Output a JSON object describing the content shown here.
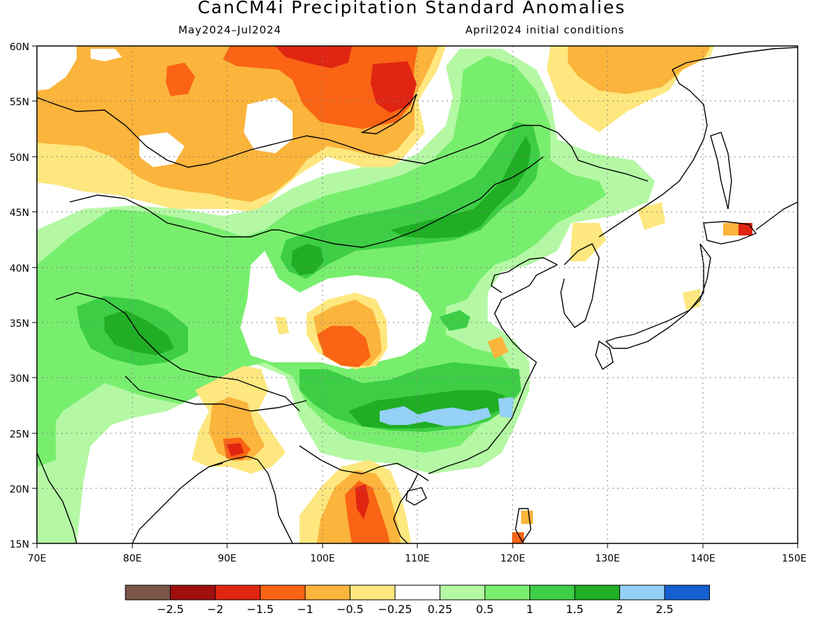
{
  "title": "CanCM4i Precipitation Standard Anomalies",
  "subtitle_left": "May2024–Jul2024",
  "subtitle_right": "April2024 initial conditions",
  "map": {
    "lon_range": [
      70,
      150
    ],
    "lat_range": [
      15,
      60
    ],
    "lat_ticks": [
      "15N",
      "20N",
      "25N",
      "30N",
      "35N",
      "40N",
      "45N",
      "50N",
      "55N",
      "60N"
    ],
    "lon_ticks": [
      "70E",
      "80E",
      "90E",
      "100E",
      "110E",
      "120E",
      "130E",
      "140E",
      "150E"
    ],
    "grid": true
  },
  "colorbar": {
    "colors": [
      "#7b5548",
      "#a00e0e",
      "#e02512",
      "#fa6414",
      "#fbb43c",
      "#fde77e",
      "#ffffff",
      "#b4f8a4",
      "#78ee6e",
      "#3dce46",
      "#1fae24",
      "#95d0f6",
      "#1560d0"
    ],
    "labels": [
      "−2.5",
      "−2",
      "−1.5",
      "−1",
      "−0.5",
      "−0.25",
      "0.25",
      "0.5",
      "1",
      "1.5",
      "2",
      "2.5"
    ]
  },
  "anomaly_regions": [
    {
      "name": "mongolia-siberia-dry",
      "level": -1.5,
      "color": "#e02512"
    },
    {
      "name": "tibet-dry",
      "level": -1.5,
      "color": "#e02512"
    },
    {
      "name": "indochina-dry",
      "level": -1.5,
      "color": "#e02512"
    },
    {
      "name": "hokkaido-dry",
      "level": -1.5,
      "color": "#e02512"
    },
    {
      "name": "yangtze-wet",
      "level": 2.5,
      "color": "#95d0f6"
    },
    {
      "name": "inner-mongolia-wet",
      "level": 1.5,
      "color": "#1fae24"
    },
    {
      "name": "himalaya-wet",
      "level": 1.5,
      "color": "#1fae24"
    }
  ]
}
